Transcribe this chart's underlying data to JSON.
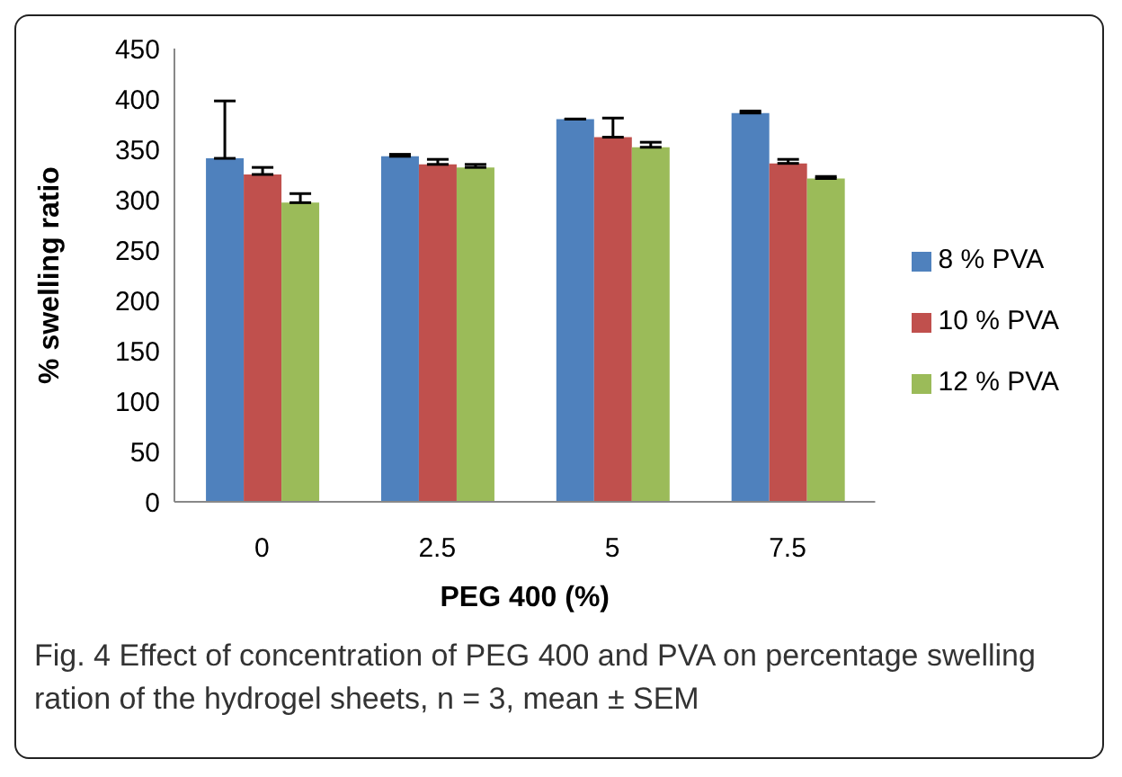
{
  "chart_data": {
    "type": "bar",
    "xlabel": "PEG 400 (%)",
    "ylabel": "% swelling ratio",
    "categories": [
      "0",
      "2.5",
      "5",
      "7.5"
    ],
    "series": [
      {
        "name": "8 % PVA",
        "color": "#4f81bd",
        "values": [
          341,
          343,
          380,
          386
        ],
        "errors": [
          [
            341,
            398
          ],
          [
            343,
            345
          ],
          [
            380,
            380
          ],
          [
            386,
            388
          ]
        ]
      },
      {
        "name": "10 % PVA",
        "color": "#c0504d",
        "values": [
          325,
          335,
          362,
          336
        ],
        "errors": [
          [
            325,
            332
          ],
          [
            335,
            340
          ],
          [
            362,
            381
          ],
          [
            336,
            340
          ]
        ]
      },
      {
        "name": "12 % PVA",
        "color": "#9bbb59",
        "values": [
          297,
          332,
          352,
          321
        ],
        "errors": [
          [
            297,
            306
          ],
          [
            332,
            335
          ],
          [
            352,
            357
          ],
          [
            321,
            323
          ]
        ]
      }
    ],
    "ylim": [
      0,
      450
    ],
    "yticks": [
      0,
      50,
      100,
      150,
      200,
      250,
      300,
      350,
      400,
      450
    ],
    "grid": false,
    "legend": "right",
    "annotations": [
      "Fig. 4 Effect of concentration of PEG 400 and PVA on percentage swelling ration of the hydrogel sheets, n = 3, mean ± SEM"
    ]
  }
}
